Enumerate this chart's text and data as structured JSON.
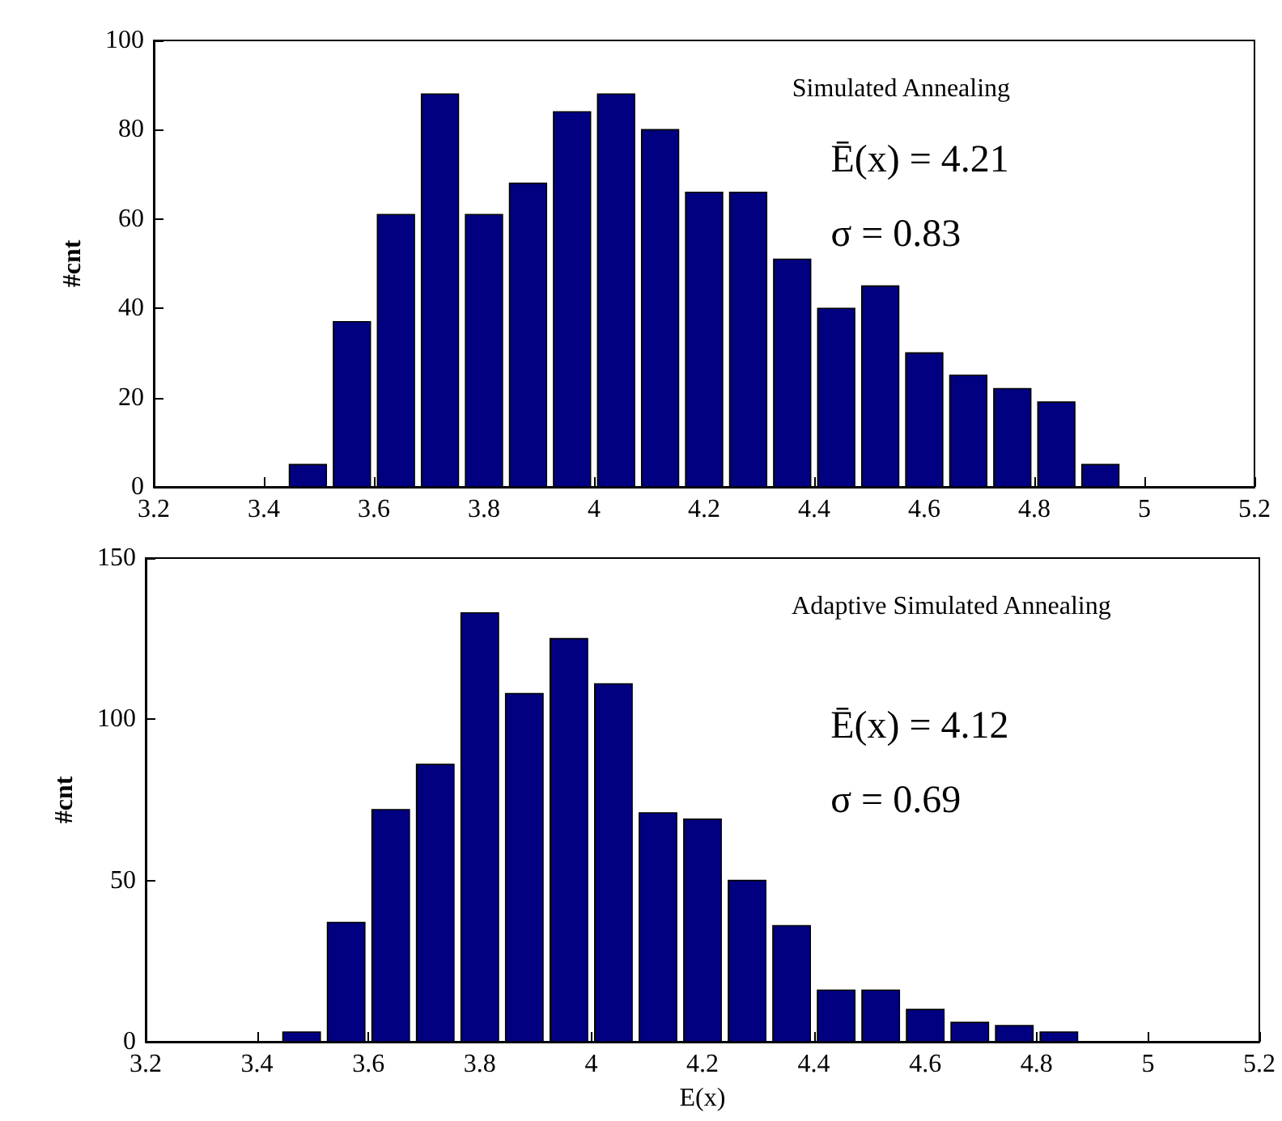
{
  "chart_data": [
    {
      "type": "histogram",
      "ylabel": "#cnt",
      "annotations": [
        "Simulated Annealing",
        "Ē(x) = 4.21",
        "σ = 0.83"
      ],
      "bins": [
        3.44,
        3.52,
        3.6,
        3.68,
        3.76,
        3.84,
        3.92,
        4.0,
        4.08,
        4.16,
        4.24,
        4.32,
        4.4,
        4.48,
        4.56,
        4.64,
        4.72,
        4.8,
        4.88,
        4.96
      ],
      "values": [
        5,
        37,
        61,
        88,
        61,
        68,
        84,
        88,
        80,
        66,
        66,
        51,
        40,
        45,
        30,
        25,
        22,
        19,
        5
      ],
      "color": "#000080",
      "xlim": [
        3.2,
        5.2
      ],
      "xticks": [
        3.2,
        3.4,
        3.6,
        3.8,
        4,
        4.2,
        4.4,
        4.6,
        4.8,
        5,
        5.2
      ],
      "ylim": [
        0,
        100
      ],
      "yticks": [
        0,
        20,
        40,
        60,
        80,
        100
      ],
      "grid": false
    },
    {
      "type": "histogram",
      "xlabel": "E(x)",
      "ylabel": "#cnt",
      "annotations": [
        "Adaptive Simulated Annealing",
        "Ē(x) = 4.12",
        "σ = 0.69"
      ],
      "bins": [
        3.44,
        3.52,
        3.6,
        3.68,
        3.76,
        3.84,
        3.92,
        4.0,
        4.08,
        4.16,
        4.24,
        4.32,
        4.4,
        4.48,
        4.56,
        4.64,
        4.72,
        4.8,
        4.88
      ],
      "values": [
        3,
        37,
        72,
        86,
        133,
        108,
        125,
        111,
        71,
        69,
        50,
        36,
        16,
        16,
        10,
        6,
        5,
        3
      ],
      "color": "#000080",
      "xlim": [
        3.2,
        5.2
      ],
      "xticks": [
        3.2,
        3.4,
        3.6,
        3.8,
        4,
        4.2,
        4.4,
        4.6,
        4.8,
        5,
        5.2
      ],
      "ylim": [
        0,
        150
      ],
      "yticks": [
        0,
        50,
        100,
        150
      ],
      "grid": false
    }
  ]
}
